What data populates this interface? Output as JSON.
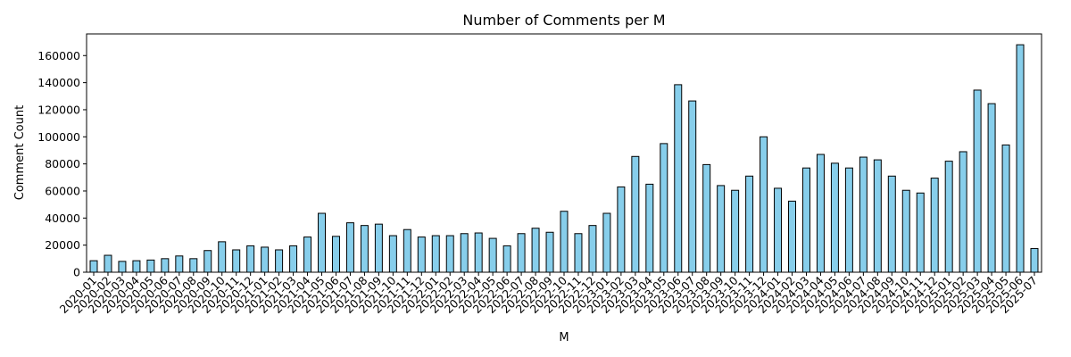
{
  "chart_data": {
    "type": "bar",
    "title": "Number of Comments per M",
    "xlabel": "M",
    "ylabel": "Comment Count",
    "ylim": [
      0,
      176000
    ],
    "yticks": [
      0,
      20000,
      40000,
      60000,
      80000,
      100000,
      120000,
      140000,
      160000
    ],
    "ytick_labels": [
      "0",
      "20000",
      "40000",
      "60000",
      "80000",
      "100000",
      "120000",
      "140000",
      "160000"
    ],
    "grid": false,
    "bar_color": "#87ceeb",
    "edge_color": "#000000",
    "categories": [
      "2020-01",
      "2020-02",
      "2020-03",
      "2020-04",
      "2020-05",
      "2020-06",
      "2020-07",
      "2020-08",
      "2020-09",
      "2020-10",
      "2020-11",
      "2020-12",
      "2021-01",
      "2021-02",
      "2021-03",
      "2021-04",
      "2021-05",
      "2021-06",
      "2021-07",
      "2021-08",
      "2021-09",
      "2021-10",
      "2021-11",
      "2021-12",
      "2022-01",
      "2022-02",
      "2022-03",
      "2022-04",
      "2022-05",
      "2022-06",
      "2022-07",
      "2022-08",
      "2022-09",
      "2022-10",
      "2022-11",
      "2022-12",
      "2023-01",
      "2023-02",
      "2023-03",
      "2023-04",
      "2023-05",
      "2023-06",
      "2023-07",
      "2023-08",
      "2023-09",
      "2023-10",
      "2023-11",
      "2023-12",
      "2024-01",
      "2024-02",
      "2024-03",
      "2024-04",
      "2024-05",
      "2024-06",
      "2024-07",
      "2024-08",
      "2024-09",
      "2024-10",
      "2024-11",
      "2024-12",
      "2025-01",
      "2025-02",
      "2025-03",
      "2025-04",
      "2025-05",
      "2025-06",
      "2025-07"
    ],
    "values": [
      8500,
      12500,
      8000,
      8500,
      9000,
      10000,
      12000,
      10000,
      16000,
      22500,
      16500,
      19500,
      18500,
      16500,
      19500,
      26000,
      43500,
      26500,
      36500,
      34500,
      35500,
      27000,
      31500,
      26000,
      27000,
      27000,
      28500,
      29000,
      25000,
      19500,
      28500,
      32500,
      29500,
      45000,
      28500,
      34500,
      43500,
      63000,
      85500,
      65000,
      95000,
      138500,
      126500,
      79500,
      64000,
      60500,
      71000,
      100000,
      62000,
      52500,
      77000,
      87000,
      80500,
      77000,
      85000,
      83000,
      71000,
      60500,
      58500,
      69500,
      82000,
      89000,
      134500,
      124500,
      94000,
      168000,
      17500
    ]
  }
}
